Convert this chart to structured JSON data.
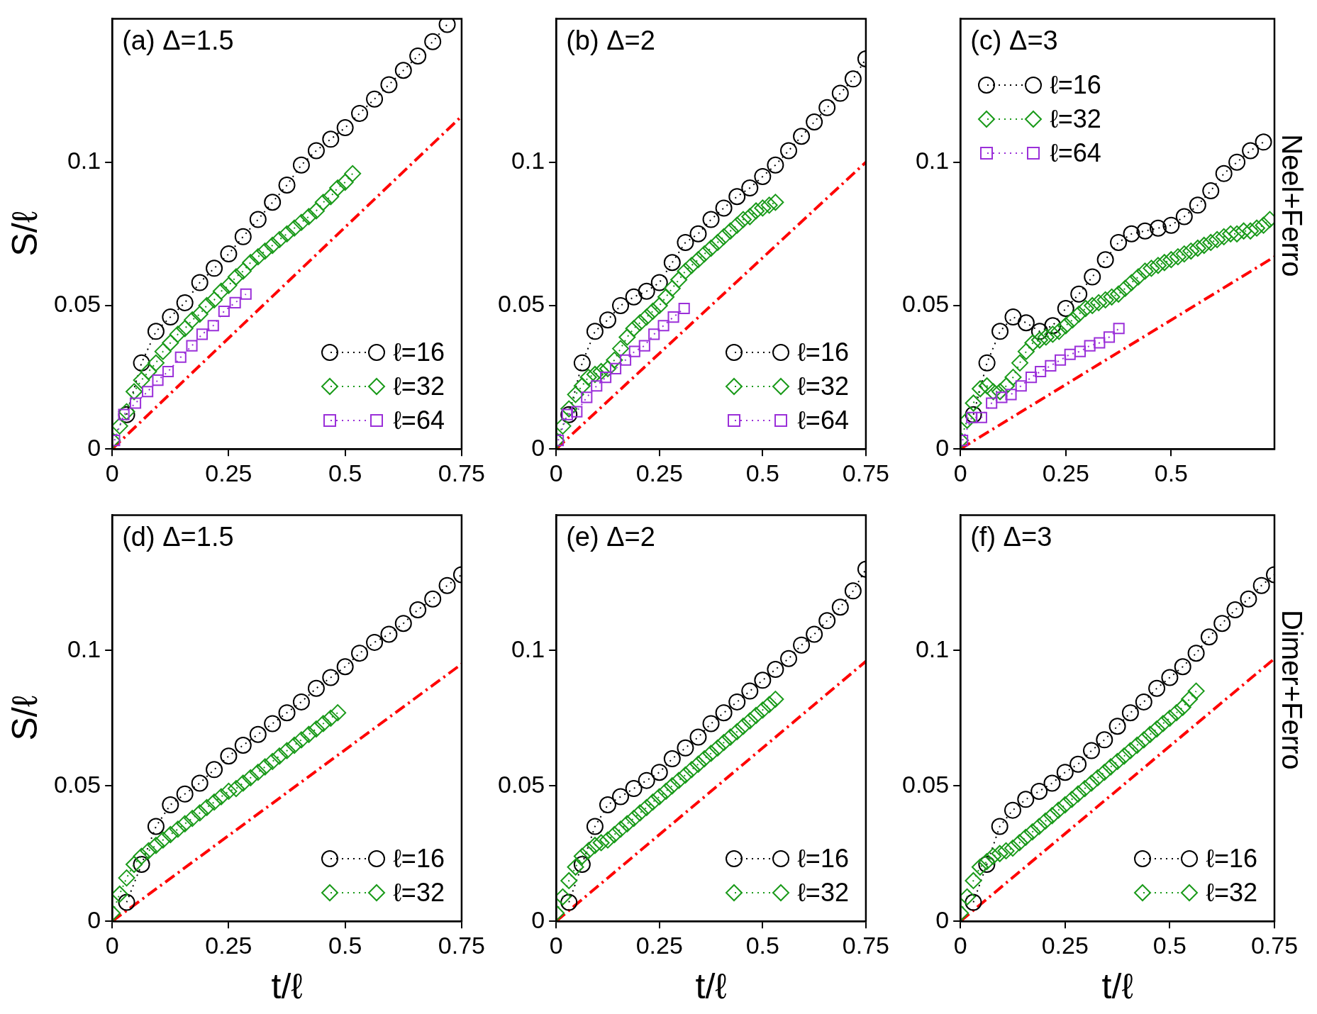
{
  "chart_data": [
    {
      "type": "line",
      "title": "(a) Δ=1.5",
      "ylabel": "S/ℓ",
      "xlim": [
        0,
        0.75
      ],
      "ylim": [
        0,
        0.15
      ],
      "xticks": [
        0,
        0.25,
        0.5,
        0.75
      ],
      "yticks": [
        0,
        0.05,
        0.1
      ],
      "legend": "bottom right",
      "series": [
        {
          "color": "#ff0000",
          "marker": "none",
          "line_style": "dashed",
          "x": [
            0,
            0.75
          ],
          "values": [
            0,
            0.116
          ]
        },
        {
          "name": "ℓ=16",
          "color": "#000000",
          "marker": "circle",
          "line_style": "dotted",
          "x": [
            0.031,
            0.063,
            0.094,
            0.125,
            0.156,
            0.188,
            0.219,
            0.25,
            0.281,
            0.313,
            0.344,
            0.375,
            0.406,
            0.438,
            0.469,
            0.5,
            0.531,
            0.563,
            0.594,
            0.625,
            0.656,
            0.688,
            0.719
          ],
          "values": [
            0.012,
            0.03,
            0.041,
            0.046,
            0.051,
            0.058,
            0.063,
            0.068,
            0.074,
            0.08,
            0.086,
            0.092,
            0.099,
            0.104,
            0.108,
            0.112,
            0.117,
            0.122,
            0.127,
            0.132,
            0.137,
            0.142,
            0.148
          ]
        },
        {
          "name": "ℓ=32",
          "color": "#1a9a1a",
          "marker": "diamond",
          "line_style": "dotted",
          "x": [
            0,
            0.016,
            0.031,
            0.047,
            0.063,
            0.078,
            0.094,
            0.109,
            0.125,
            0.141,
            0.156,
            0.172,
            0.188,
            0.203,
            0.219,
            0.234,
            0.25,
            0.266,
            0.281,
            0.297,
            0.313,
            0.328,
            0.344,
            0.359,
            0.375,
            0.391,
            0.406,
            0.422,
            0.438,
            0.453,
            0.469,
            0.484,
            0.5,
            0.516
          ],
          "values": [
            0.003,
            0.008,
            0.013,
            0.02,
            0.024,
            0.027,
            0.03,
            0.034,
            0.037,
            0.04,
            0.042,
            0.045,
            0.047,
            0.05,
            0.052,
            0.055,
            0.057,
            0.06,
            0.062,
            0.065,
            0.067,
            0.069,
            0.071,
            0.073,
            0.075,
            0.077,
            0.079,
            0.081,
            0.083,
            0.086,
            0.088,
            0.091,
            0.093,
            0.096
          ]
        },
        {
          "name": "ℓ=64",
          "color": "#9b30d9",
          "marker": "square",
          "line_style": "dotted",
          "x": [
            0.005,
            0.025,
            0.05,
            0.076,
            0.098,
            0.12,
            0.147,
            0.171,
            0.193,
            0.217,
            0.24,
            0.264,
            0.287
          ],
          "values": [
            0.003,
            0.012,
            0.016,
            0.02,
            0.024,
            0.027,
            0.032,
            0.036,
            0.04,
            0.043,
            0.048,
            0.051,
            0.054
          ]
        }
      ]
    },
    {
      "type": "line",
      "title": "(b) Δ=2",
      "xlim": [
        0,
        0.75
      ],
      "ylim": [
        0,
        0.15
      ],
      "xticks": [
        0,
        0.25,
        0.5,
        0.75
      ],
      "yticks": [
        0,
        0.05,
        0.1
      ],
      "legend": "bottom right",
      "series": [
        {
          "color": "#ff0000",
          "marker": "none",
          "line_style": "dashed",
          "x": [
            0,
            0.75
          ],
          "values": [
            0,
            0.1
          ]
        },
        {
          "name": "ℓ=16",
          "color": "#000000",
          "marker": "circle",
          "line_style": "dotted",
          "x": [
            0.031,
            0.063,
            0.094,
            0.125,
            0.156,
            0.188,
            0.219,
            0.25,
            0.281,
            0.313,
            0.344,
            0.375,
            0.406,
            0.438,
            0.469,
            0.5,
            0.531,
            0.563,
            0.594,
            0.625,
            0.656,
            0.688,
            0.719,
            0.75
          ],
          "values": [
            0.012,
            0.03,
            0.041,
            0.045,
            0.05,
            0.053,
            0.055,
            0.058,
            0.065,
            0.072,
            0.075,
            0.08,
            0.084,
            0.088,
            0.091,
            0.095,
            0.099,
            0.104,
            0.109,
            0.114,
            0.119,
            0.124,
            0.129,
            0.136
          ]
        },
        {
          "name": "ℓ=32",
          "color": "#1a9a1a",
          "marker": "diamond",
          "line_style": "dotted",
          "x": [
            0,
            0.016,
            0.031,
            0.047,
            0.063,
            0.078,
            0.094,
            0.109,
            0.125,
            0.141,
            0.156,
            0.172,
            0.188,
            0.203,
            0.219,
            0.234,
            0.25,
            0.266,
            0.281,
            0.297,
            0.313,
            0.328,
            0.344,
            0.359,
            0.375,
            0.391,
            0.406,
            0.422,
            0.438,
            0.453,
            0.469,
            0.484,
            0.5,
            0.516,
            0.531
          ],
          "values": [
            0.003,
            0.008,
            0.014,
            0.019,
            0.022,
            0.025,
            0.026,
            0.027,
            0.028,
            0.031,
            0.035,
            0.039,
            0.042,
            0.044,
            0.046,
            0.048,
            0.05,
            0.053,
            0.056,
            0.059,
            0.062,
            0.064,
            0.066,
            0.068,
            0.07,
            0.072,
            0.074,
            0.076,
            0.078,
            0.08,
            0.081,
            0.083,
            0.084,
            0.085,
            0.086
          ]
        },
        {
          "name": "ℓ=64",
          "color": "#9b30d9",
          "marker": "square",
          "line_style": "dotted",
          "x": [
            0.005,
            0.027,
            0.05,
            0.074,
            0.098,
            0.12,
            0.144,
            0.168,
            0.19,
            0.214,
            0.237,
            0.26,
            0.284,
            0.31
          ],
          "values": [
            0.003,
            0.012,
            0.013,
            0.018,
            0.022,
            0.025,
            0.028,
            0.031,
            0.034,
            0.036,
            0.04,
            0.043,
            0.046,
            0.049
          ]
        }
      ]
    },
    {
      "type": "line",
      "title": "(c) Δ=3",
      "y2label": "Neel+Ferro",
      "xlim": [
        0,
        0.745
      ],
      "ylim": [
        0,
        0.15
      ],
      "xticks": [
        0,
        0.25,
        0.5
      ],
      "yticks": [
        0,
        0.05,
        0.1
      ],
      "legend": "top left",
      "series": [
        {
          "color": "#ff0000",
          "marker": "none",
          "line_style": "dashed",
          "x": [
            0,
            0.745
          ],
          "values": [
            0,
            0.067
          ]
        },
        {
          "name": "ℓ=16",
          "color": "#000000",
          "marker": "circle",
          "line_style": "dotted",
          "x": [
            0.031,
            0.063,
            0.094,
            0.125,
            0.156,
            0.188,
            0.219,
            0.25,
            0.281,
            0.313,
            0.344,
            0.375,
            0.406,
            0.438,
            0.469,
            0.5,
            0.531,
            0.563,
            0.594,
            0.625,
            0.656,
            0.688,
            0.719
          ],
          "values": [
            0.012,
            0.03,
            0.041,
            0.046,
            0.044,
            0.041,
            0.043,
            0.049,
            0.054,
            0.06,
            0.066,
            0.072,
            0.075,
            0.076,
            0.077,
            0.078,
            0.081,
            0.085,
            0.09,
            0.096,
            0.1,
            0.104,
            0.107
          ]
        },
        {
          "name": "ℓ=32",
          "color": "#1a9a1a",
          "marker": "diamond",
          "line_style": "dotted",
          "x": [
            0,
            0.016,
            0.031,
            0.047,
            0.063,
            0.078,
            0.094,
            0.109,
            0.125,
            0.141,
            0.156,
            0.172,
            0.188,
            0.203,
            0.219,
            0.234,
            0.25,
            0.266,
            0.281,
            0.297,
            0.313,
            0.328,
            0.344,
            0.359,
            0.375,
            0.391,
            0.406,
            0.422,
            0.438,
            0.453,
            0.469,
            0.484,
            0.5,
            0.516,
            0.531,
            0.547,
            0.563,
            0.578,
            0.594,
            0.609,
            0.625,
            0.641,
            0.656,
            0.672,
            0.688,
            0.703,
            0.719,
            0.734
          ],
          "values": [
            0.003,
            0.01,
            0.016,
            0.021,
            0.022,
            0.02,
            0.02,
            0.022,
            0.025,
            0.03,
            0.034,
            0.037,
            0.038,
            0.039,
            0.04,
            0.041,
            0.043,
            0.045,
            0.047,
            0.049,
            0.05,
            0.051,
            0.052,
            0.053,
            0.054,
            0.056,
            0.058,
            0.06,
            0.062,
            0.063,
            0.064,
            0.065,
            0.066,
            0.067,
            0.068,
            0.069,
            0.07,
            0.071,
            0.072,
            0.073,
            0.074,
            0.075,
            0.075,
            0.076,
            0.076,
            0.077,
            0.078,
            0.08
          ]
        },
        {
          "name": "ℓ=64",
          "color": "#9b30d9",
          "marker": "square",
          "line_style": "dotted",
          "x": [
            0.005,
            0.027,
            0.05,
            0.074,
            0.098,
            0.12,
            0.144,
            0.168,
            0.19,
            0.214,
            0.237,
            0.26,
            0.284,
            0.307,
            0.33,
            0.353,
            0.376
          ],
          "values": [
            0.003,
            0.011,
            0.011,
            0.016,
            0.018,
            0.019,
            0.022,
            0.025,
            0.027,
            0.029,
            0.031,
            0.033,
            0.034,
            0.036,
            0.037,
            0.039,
            0.042
          ]
        }
      ]
    },
    {
      "type": "line",
      "title": "(d) Δ=1.5",
      "ylabel": "S/ℓ",
      "xlabel": "t/ℓ",
      "xlim": [
        0,
        0.75
      ],
      "ylim": [
        0,
        0.15
      ],
      "xticks": [
        0,
        0.25,
        0.5,
        0.75
      ],
      "yticks": [
        0,
        0.05,
        0.1
      ],
      "legend": "bottom right",
      "series": [
        {
          "color": "#ff0000",
          "marker": "none",
          "line_style": "dashed",
          "x": [
            0,
            0.75
          ],
          "values": [
            0,
            0.095
          ]
        },
        {
          "name": "ℓ=16",
          "color": "#000000",
          "marker": "circle",
          "line_style": "dotted",
          "x": [
            0.031,
            0.063,
            0.094,
            0.125,
            0.156,
            0.188,
            0.219,
            0.25,
            0.281,
            0.313,
            0.344,
            0.375,
            0.406,
            0.438,
            0.469,
            0.5,
            0.531,
            0.563,
            0.594,
            0.625,
            0.656,
            0.688,
            0.719,
            0.75
          ],
          "values": [
            0.007,
            0.021,
            0.035,
            0.043,
            0.047,
            0.051,
            0.056,
            0.061,
            0.065,
            0.069,
            0.073,
            0.077,
            0.081,
            0.086,
            0.09,
            0.094,
            0.099,
            0.103,
            0.106,
            0.11,
            0.115,
            0.119,
            0.124,
            0.128
          ]
        },
        {
          "name": "ℓ=32",
          "color": "#1a9a1a",
          "marker": "diamond",
          "line_style": "dotted",
          "x": [
            0,
            0.016,
            0.031,
            0.047,
            0.063,
            0.078,
            0.094,
            0.109,
            0.125,
            0.141,
            0.156,
            0.172,
            0.188,
            0.203,
            0.219,
            0.234,
            0.25,
            0.266,
            0.281,
            0.297,
            0.313,
            0.328,
            0.344,
            0.359,
            0.375,
            0.391,
            0.406,
            0.422,
            0.438,
            0.453,
            0.469,
            0.484
          ],
          "values": [
            0.003,
            0.01,
            0.016,
            0.021,
            0.024,
            0.026,
            0.028,
            0.03,
            0.032,
            0.034,
            0.036,
            0.038,
            0.04,
            0.042,
            0.044,
            0.046,
            0.048,
            0.049,
            0.051,
            0.053,
            0.055,
            0.057,
            0.059,
            0.061,
            0.063,
            0.065,
            0.067,
            0.069,
            0.071,
            0.073,
            0.075,
            0.077
          ]
        }
      ]
    },
    {
      "type": "line",
      "title": "(e) Δ=2",
      "xlabel": "t/ℓ",
      "xlim": [
        0,
        0.75
      ],
      "ylim": [
        0,
        0.15
      ],
      "xticks": [
        0,
        0.25,
        0.5,
        0.75
      ],
      "yticks": [
        0,
        0.05,
        0.1
      ],
      "legend": "bottom right",
      "series": [
        {
          "color": "#ff0000",
          "marker": "none",
          "line_style": "dashed",
          "x": [
            0,
            0.75
          ],
          "values": [
            0,
            0.096
          ]
        },
        {
          "name": "ℓ=16",
          "color": "#000000",
          "marker": "circle",
          "line_style": "dotted",
          "x": [
            0.031,
            0.063,
            0.094,
            0.125,
            0.156,
            0.188,
            0.219,
            0.25,
            0.281,
            0.313,
            0.344,
            0.375,
            0.406,
            0.438,
            0.469,
            0.5,
            0.531,
            0.563,
            0.594,
            0.625,
            0.656,
            0.688,
            0.719,
            0.75
          ],
          "values": [
            0.007,
            0.021,
            0.035,
            0.043,
            0.046,
            0.049,
            0.052,
            0.055,
            0.06,
            0.064,
            0.068,
            0.073,
            0.077,
            0.081,
            0.085,
            0.089,
            0.093,
            0.097,
            0.102,
            0.106,
            0.111,
            0.116,
            0.122,
            0.13
          ]
        },
        {
          "name": "ℓ=32",
          "color": "#1a9a1a",
          "marker": "diamond",
          "line_style": "dotted",
          "x": [
            0,
            0.016,
            0.031,
            0.047,
            0.063,
            0.078,
            0.094,
            0.109,
            0.125,
            0.141,
            0.156,
            0.172,
            0.188,
            0.203,
            0.219,
            0.234,
            0.25,
            0.266,
            0.281,
            0.297,
            0.313,
            0.328,
            0.344,
            0.359,
            0.375,
            0.391,
            0.406,
            0.422,
            0.438,
            0.453,
            0.469,
            0.484,
            0.5,
            0.516,
            0.531
          ],
          "values": [
            0.003,
            0.009,
            0.015,
            0.02,
            0.024,
            0.026,
            0.028,
            0.029,
            0.03,
            0.032,
            0.034,
            0.036,
            0.038,
            0.04,
            0.042,
            0.044,
            0.046,
            0.048,
            0.05,
            0.052,
            0.054,
            0.056,
            0.058,
            0.06,
            0.062,
            0.064,
            0.066,
            0.068,
            0.07,
            0.072,
            0.074,
            0.076,
            0.078,
            0.08,
            0.082
          ]
        }
      ]
    },
    {
      "type": "line",
      "title": "(f) Δ=3",
      "xlabel": "t/ℓ",
      "y2label": "Dimer+Ferro",
      "xlim": [
        0,
        0.75
      ],
      "ylim": [
        0,
        0.15
      ],
      "xticks": [
        0,
        0.25,
        0.5,
        0.75
      ],
      "yticks": [
        0,
        0.05,
        0.1
      ],
      "legend": "bottom right",
      "series": [
        {
          "color": "#ff0000",
          "marker": "none",
          "line_style": "dashed",
          "x": [
            0,
            0.75
          ],
          "values": [
            0,
            0.097
          ]
        },
        {
          "name": "ℓ=16",
          "color": "#000000",
          "marker": "circle",
          "line_style": "dotted",
          "x": [
            0.031,
            0.063,
            0.094,
            0.125,
            0.156,
            0.188,
            0.219,
            0.25,
            0.281,
            0.313,
            0.344,
            0.375,
            0.406,
            0.438,
            0.469,
            0.5,
            0.531,
            0.563,
            0.594,
            0.625,
            0.656,
            0.688,
            0.719,
            0.75
          ],
          "values": [
            0.007,
            0.021,
            0.035,
            0.041,
            0.045,
            0.048,
            0.051,
            0.055,
            0.058,
            0.063,
            0.067,
            0.072,
            0.077,
            0.081,
            0.086,
            0.09,
            0.094,
            0.099,
            0.105,
            0.11,
            0.115,
            0.119,
            0.124,
            0.128
          ]
        },
        {
          "name": "ℓ=32",
          "color": "#1a9a1a",
          "marker": "diamond",
          "line_style": "dotted",
          "x": [
            0,
            0.016,
            0.031,
            0.047,
            0.063,
            0.078,
            0.094,
            0.109,
            0.125,
            0.141,
            0.156,
            0.172,
            0.188,
            0.203,
            0.219,
            0.234,
            0.25,
            0.266,
            0.281,
            0.297,
            0.313,
            0.328,
            0.344,
            0.359,
            0.375,
            0.391,
            0.406,
            0.422,
            0.438,
            0.453,
            0.469,
            0.484,
            0.5,
            0.516,
            0.531,
            0.547,
            0.563
          ],
          "values": [
            0.003,
            0.009,
            0.015,
            0.02,
            0.022,
            0.024,
            0.025,
            0.026,
            0.027,
            0.029,
            0.031,
            0.033,
            0.035,
            0.037,
            0.039,
            0.041,
            0.043,
            0.045,
            0.047,
            0.049,
            0.051,
            0.053,
            0.055,
            0.057,
            0.059,
            0.061,
            0.063,
            0.065,
            0.067,
            0.069,
            0.071,
            0.073,
            0.075,
            0.077,
            0.079,
            0.082,
            0.085
          ]
        }
      ]
    }
  ]
}
